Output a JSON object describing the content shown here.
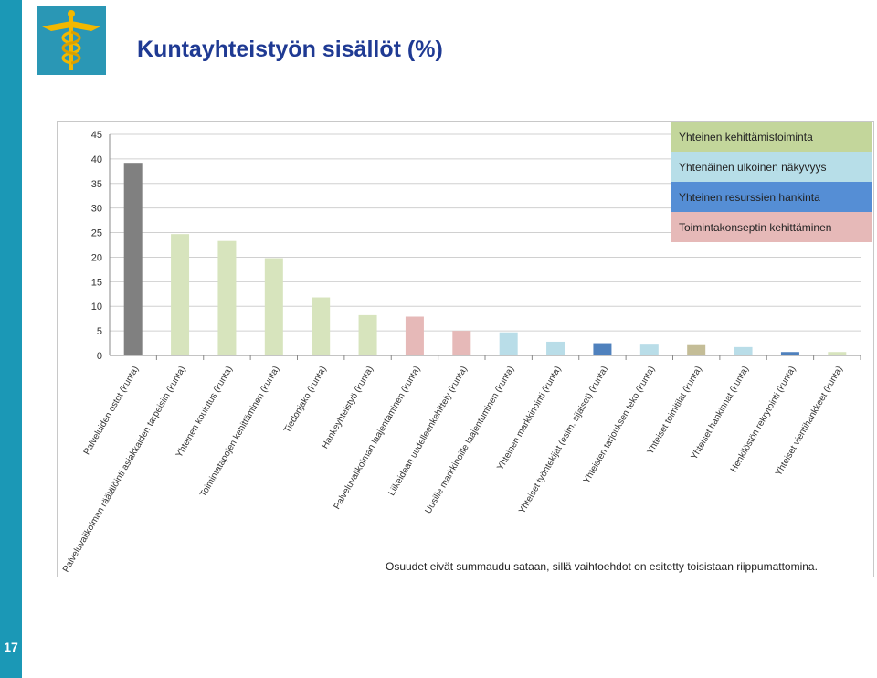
{
  "header": {
    "title": "Kuntayhteistyön sisällöt (%)",
    "logo_icon": "caduceus-icon"
  },
  "footer": {
    "page_number": "17"
  },
  "colors": {
    "side_bar": "#1b98b6",
    "title": "#1f3a93",
    "gray": "#808080",
    "green": "#d7e4bd",
    "lightblue": "#b9dde8",
    "blue": "#4f81bd",
    "pink": "#e6b9b8",
    "tan": "#c4bd97"
  },
  "chart_data": {
    "type": "bar",
    "categories": [
      "Palveluiden ostot (kunta)",
      "Palveluvalikoiman räätälöinti asiakkaiden tarpeisiin (kunta)",
      "Yhteinen koulutus (kunta)",
      "Toimintatapojen kehittäminen (kunta)",
      "Tiedonjako (kunta)",
      "Hankeyhteistyö (kunta)",
      "Palveluvalikoiman laajentaminen (kunta)",
      "Liikeidean uudelleenkehittely (kunta)",
      "Uusille markkinoille laajentuminen (kunta)",
      "Yhteinen markkinointi (kunta)",
      "Yhteiset työntekijät (esim. sijaiset) (kunta)",
      "Yhteisten tarjouksen teko (kunta)",
      "Yhteiset toimitilat (kunta)",
      "Yhteiset hankinnat (kunta)",
      "Henkilöstön rekrytointi (kunta)",
      "Yhteiset vientihankkeet (kunta)"
    ],
    "values": [
      39.2,
      24.7,
      23.3,
      19.8,
      11.8,
      8.2,
      7.9,
      5.0,
      4.7,
      2.8,
      2.5,
      2.2,
      2.1,
      1.7,
      0.7,
      0.7
    ],
    "bar_colors": [
      "gray",
      "green",
      "green",
      "green",
      "green",
      "green",
      "pink",
      "pink",
      "lightblue",
      "lightblue",
      "blue",
      "lightblue",
      "tan",
      "lightblue",
      "blue",
      "green"
    ],
    "ylim": [
      0,
      45
    ],
    "yticks": [
      "0",
      "5",
      "10",
      "15",
      "20",
      "25",
      "30",
      "35",
      "40",
      "45"
    ],
    "grid": true,
    "legend_position": "top-right",
    "legend": [
      {
        "label": "Yhteinen kehittämistoiminta",
        "color": "#c3d69b"
      },
      {
        "label": "Yhtenäinen ulkoinen näkyvyys",
        "color": "#b7dee8"
      },
      {
        "label": "Yhteinen resurssien hankinta",
        "color": "#558ed5"
      },
      {
        "label": "Toimintakonseptin kehittäminen",
        "color": "#e6b9b8"
      }
    ],
    "note": "Osuudet eivät summaudu sataan, sillä vaihtoehdot on esitetty toisistaan riippumattomina."
  }
}
